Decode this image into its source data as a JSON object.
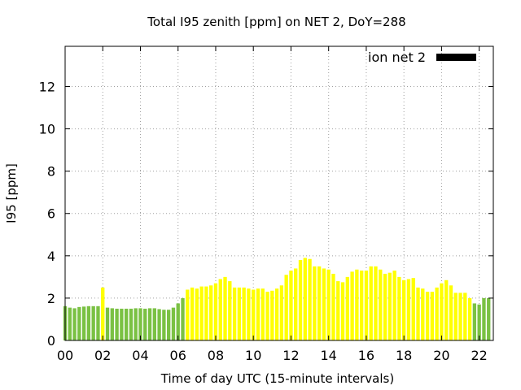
{
  "chart_data": {
    "type": "bar",
    "title": "Total I95 zenith [ppm] on NET 2, DoY=288",
    "xlabel": "Time of day UTC (15-minute intervals)",
    "ylabel": "I95 [ppm]",
    "xlim": [
      0,
      22.75
    ],
    "ylim": [
      0,
      13.9
    ],
    "x_ticks": [
      "00",
      "02",
      "04",
      "06",
      "08",
      "10",
      "12",
      "14",
      "16",
      "18",
      "20",
      "22"
    ],
    "y_ticks": [
      "0",
      "2",
      "4",
      "6",
      "8",
      "10",
      "12"
    ],
    "grid": true,
    "legend_position": "top-right",
    "series": [
      {
        "name": "ion net 2",
        "legend_color": "#000000",
        "interval_hours": 0.25,
        "colors": {
          "green": "#7ac143",
          "yellow": "#ffff00"
        },
        "values": [
          1.62,
          1.55,
          1.52,
          1.58,
          1.6,
          1.62,
          1.62,
          1.62,
          2.5,
          1.55,
          1.52,
          1.5,
          1.5,
          1.5,
          1.5,
          1.52,
          1.52,
          1.5,
          1.52,
          1.52,
          1.48,
          1.45,
          1.45,
          1.55,
          1.75,
          2.0,
          2.4,
          2.5,
          2.45,
          2.55,
          2.55,
          2.6,
          2.7,
          2.9,
          3.0,
          2.8,
          2.5,
          2.5,
          2.5,
          2.45,
          2.4,
          2.45,
          2.45,
          2.3,
          2.35,
          2.45,
          2.6,
          3.1,
          3.3,
          3.4,
          3.8,
          3.9,
          3.85,
          3.5,
          3.5,
          3.4,
          3.35,
          3.15,
          2.8,
          2.75,
          3.0,
          3.25,
          3.35,
          3.3,
          3.3,
          3.5,
          3.5,
          3.35,
          3.15,
          3.2,
          3.3,
          3.0,
          2.85,
          2.9,
          2.95,
          2.5,
          2.45,
          2.3,
          2.3,
          2.5,
          2.7,
          2.85,
          2.6,
          2.25,
          2.25,
          2.25,
          2.0,
          1.75,
          1.7,
          2.0,
          2.0
        ],
        "bar_colors": [
          "green",
          "green",
          "green",
          "green",
          "green",
          "green",
          "green",
          "green",
          "yellow",
          "green",
          "green",
          "green",
          "green",
          "green",
          "green",
          "green",
          "green",
          "green",
          "green",
          "green",
          "green",
          "green",
          "green",
          "green",
          "green",
          "green",
          "yellow",
          "yellow",
          "yellow",
          "yellow",
          "yellow",
          "yellow",
          "yellow",
          "yellow",
          "yellow",
          "yellow",
          "yellow",
          "yellow",
          "yellow",
          "yellow",
          "yellow",
          "yellow",
          "yellow",
          "yellow",
          "yellow",
          "yellow",
          "yellow",
          "yellow",
          "yellow",
          "yellow",
          "yellow",
          "yellow",
          "yellow",
          "yellow",
          "yellow",
          "yellow",
          "yellow",
          "yellow",
          "yellow",
          "yellow",
          "yellow",
          "yellow",
          "yellow",
          "yellow",
          "yellow",
          "yellow",
          "yellow",
          "yellow",
          "yellow",
          "yellow",
          "yellow",
          "yellow",
          "yellow",
          "yellow",
          "yellow",
          "yellow",
          "yellow",
          "yellow",
          "yellow",
          "yellow",
          "yellow",
          "yellow",
          "yellow",
          "yellow",
          "yellow",
          "yellow",
          "yellow",
          "green",
          "green",
          "green",
          "green"
        ]
      }
    ]
  }
}
